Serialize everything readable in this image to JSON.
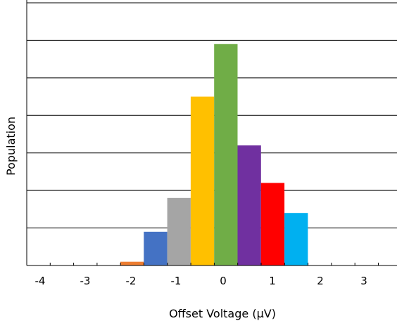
{
  "chart_data": {
    "type": "bar",
    "title": "",
    "xlabel": "Offset Voltage (µV)",
    "ylabel": "Population",
    "x_tick_labels": [
      "-4",
      "-3",
      "-2",
      "-1",
      "0",
      "1",
      "2",
      "3"
    ],
    "y_tick_labels_shown": false,
    "grid": "horizontal",
    "legend": "none",
    "bins": [
      {
        "value": 1.0,
        "color": "#ED7D31"
      },
      {
        "value": 9.0,
        "color": "#4472C4"
      },
      {
        "value": 18.0,
        "color": "#A5A5A5"
      },
      {
        "value": 45.0,
        "color": "#FFC000"
      },
      {
        "value": 59.0,
        "color": "#70AD47"
      },
      {
        "value": 32.0,
        "color": "#7030A0"
      },
      {
        "value": 22.0,
        "color": "#FF0000"
      },
      {
        "value": 14.0,
        "color": "#00B0F0"
      }
    ],
    "ylim": [
      0,
      70
    ]
  }
}
